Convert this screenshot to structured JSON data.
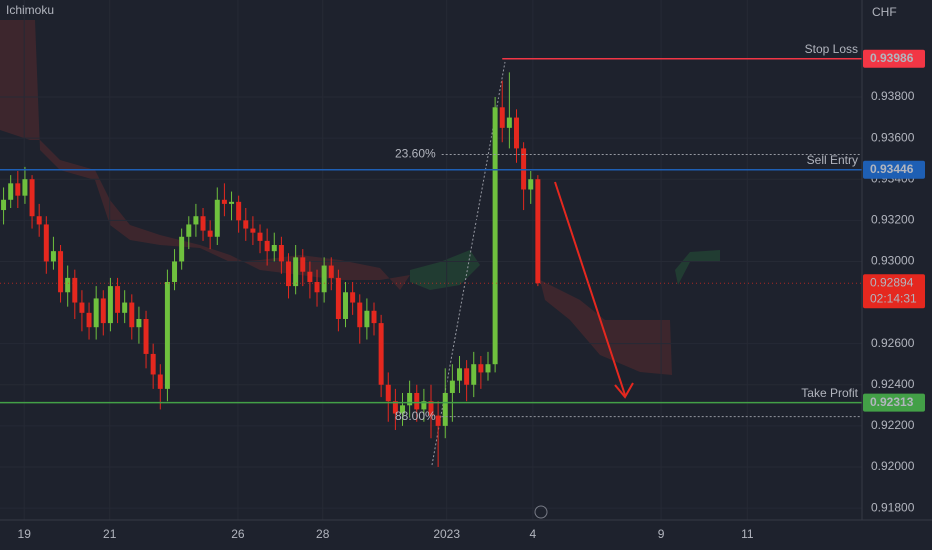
{
  "chart_data": {
    "type": "candlestick",
    "indicator_label": "Ichimoku",
    "currency": "CHF",
    "up_color": "#6fc13e",
    "down_color": "#e5281f",
    "x": [
      0,
      1,
      2,
      3,
      4,
      5,
      6,
      7,
      8,
      9,
      10,
      11,
      12,
      13,
      14,
      15,
      16,
      17,
      18,
      19,
      20,
      21,
      22,
      23,
      24,
      25,
      26,
      27,
      28,
      29,
      30,
      31,
      32,
      33,
      34,
      35,
      36,
      37,
      38,
      39,
      40,
      41,
      42,
      43,
      44,
      45,
      46,
      47,
      48,
      49,
      50,
      51,
      52,
      53,
      54,
      55,
      56,
      57,
      58,
      59,
      60,
      61,
      62,
      63,
      64,
      65,
      66,
      67,
      68,
      69,
      70,
      71,
      72,
      73,
      74,
      75
    ],
    "open": [
      0.9325,
      0.933,
      0.9338,
      0.9332,
      0.934,
      0.9322,
      0.9318,
      0.93,
      0.9305,
      0.9285,
      0.9292,
      0.928,
      0.9275,
      0.9268,
      0.9282,
      0.927,
      0.9288,
      0.9275,
      0.928,
      0.9268,
      0.9272,
      0.9255,
      0.9245,
      0.9238,
      0.929,
      0.93,
      0.9312,
      0.9318,
      0.9322,
      0.9315,
      0.9312,
      0.933,
      0.9328,
      0.9329,
      0.932,
      0.9316,
      0.9314,
      0.931,
      0.9305,
      0.9308,
      0.93,
      0.9288,
      0.9302,
      0.9295,
      0.929,
      0.9285,
      0.9298,
      0.9292,
      0.9272,
      0.9285,
      0.928,
      0.9268,
      0.9276,
      0.927,
      0.924,
      0.9232,
      0.9226,
      0.923,
      0.9236,
      0.9228,
      0.9232,
      0.9225,
      0.922,
      0.9236,
      0.9242,
      0.9248,
      0.924,
      0.925,
      0.9246,
      0.925,
      0.9375,
      0.9365,
      0.937,
      0.9355,
      0.9335,
      0.934
    ],
    "high": [
      0.9336,
      0.9342,
      0.9344,
      0.9346,
      0.9342,
      0.9328,
      0.9322,
      0.9312,
      0.9308,
      0.9298,
      0.9296,
      0.9286,
      0.928,
      0.9288,
      0.9286,
      0.9292,
      0.9292,
      0.9286,
      0.9284,
      0.9278,
      0.9276,
      0.926,
      0.925,
      0.9296,
      0.9306,
      0.9316,
      0.9322,
      0.9328,
      0.9326,
      0.932,
      0.9336,
      0.9338,
      0.9334,
      0.9332,
      0.9326,
      0.9322,
      0.9318,
      0.9316,
      0.9314,
      0.9312,
      0.9304,
      0.9308,
      0.9306,
      0.93,
      0.9296,
      0.9302,
      0.9302,
      0.9296,
      0.929,
      0.929,
      0.9284,
      0.9282,
      0.928,
      0.9274,
      0.9246,
      0.9238,
      0.9236,
      0.9242,
      0.924,
      0.9238,
      0.924,
      0.9232,
      0.9248,
      0.925,
      0.9254,
      0.9252,
      0.9256,
      0.9254,
      0.9256,
      0.938,
      0.9388,
      0.9392,
      0.9374,
      0.9358,
      0.9344,
      0.9342
    ],
    "low": [
      0.9318,
      0.9326,
      0.9326,
      0.9328,
      0.9316,
      0.9312,
      0.9294,
      0.9296,
      0.928,
      0.9278,
      0.9272,
      0.9266,
      0.9262,
      0.9262,
      0.9264,
      0.9266,
      0.927,
      0.927,
      0.9262,
      0.926,
      0.9248,
      0.9238,
      0.9228,
      0.9232,
      0.9286,
      0.9296,
      0.9306,
      0.9312,
      0.931,
      0.9306,
      0.9308,
      0.9322,
      0.932,
      0.9314,
      0.931,
      0.9308,
      0.9304,
      0.9298,
      0.93,
      0.9294,
      0.9282,
      0.9284,
      0.9288,
      0.9282,
      0.9278,
      0.928,
      0.9286,
      0.9266,
      0.9268,
      0.9274,
      0.926,
      0.9262,
      0.9264,
      0.9234,
      0.9222,
      0.9218,
      0.922,
      0.9224,
      0.9222,
      0.9222,
      0.9214,
      0.92,
      0.9214,
      0.9222,
      0.9236,
      0.9232,
      0.9234,
      0.9238,
      0.9242,
      0.9246,
      0.9358,
      0.9355,
      0.9348,
      0.9325,
      0.9328,
      0.9288
    ],
    "close": [
      0.933,
      0.9338,
      0.9332,
      0.934,
      0.9322,
      0.9318,
      0.93,
      0.9305,
      0.9285,
      0.9292,
      0.928,
      0.9275,
      0.9268,
      0.9282,
      0.927,
      0.9288,
      0.9275,
      0.928,
      0.9268,
      0.9272,
      0.9255,
      0.9245,
      0.9238,
      0.929,
      0.93,
      0.9312,
      0.9318,
      0.9322,
      0.9315,
      0.9312,
      0.933,
      0.9328,
      0.9329,
      0.932,
      0.9316,
      0.9314,
      0.931,
      0.9305,
      0.9308,
      0.93,
      0.9288,
      0.9302,
      0.9295,
      0.929,
      0.9285,
      0.9298,
      0.9292,
      0.9272,
      0.9285,
      0.928,
      0.9268,
      0.9276,
      0.927,
      0.924,
      0.9232,
      0.9226,
      0.923,
      0.9236,
      0.9228,
      0.9232,
      0.9225,
      0.922,
      0.9236,
      0.9242,
      0.9248,
      0.924,
      0.925,
      0.9246,
      0.925,
      0.9375,
      0.9365,
      0.937,
      0.9355,
      0.9335,
      0.934,
      0.92894
    ],
    "xlim": [
      -0.5,
      120.5
    ],
    "xticks": [
      {
        "value": 2.9,
        "label": "19"
      },
      {
        "value": 14.9,
        "label": "21"
      },
      {
        "value": 32.9,
        "label": "26"
      },
      {
        "value": 44.8,
        "label": "28"
      },
      {
        "value": 62.2,
        "label": "2023"
      },
      {
        "value": 74.3,
        "label": "4"
      },
      {
        "value": 92.3,
        "label": "9"
      },
      {
        "value": 104.4,
        "label": "11"
      }
    ],
    "ylim": [
      0.91742,
      0.94272
    ],
    "yticks": [
      {
        "value": 0.938,
        "label": "0.93800"
      },
      {
        "value": 0.936,
        "label": "0.93600"
      },
      {
        "value": 0.934,
        "label": "0.93400"
      },
      {
        "value": 0.932,
        "label": "0.93200"
      },
      {
        "value": 0.93,
        "label": "0.93000"
      },
      {
        "value": 0.926,
        "label": "0.92600"
      },
      {
        "value": 0.924,
        "label": "0.92400"
      },
      {
        "value": 0.922,
        "label": "0.92200"
      },
      {
        "value": 0.92,
        "label": "0.92000"
      },
      {
        "value": 0.918,
        "label": "0.91800"
      }
    ],
    "levels": [
      {
        "name": "Stop Loss",
        "value": 0.93986,
        "color": "#f23645",
        "from_x": 70
      },
      {
        "name": "Sell Entry",
        "value": 0.93446,
        "color": "#1e5fb4",
        "from_x": -0.5
      },
      {
        "name": "Take Profit",
        "value": 0.92313,
        "color": "#43a047",
        "from_x": -0.5
      }
    ],
    "fib_levels": [
      {
        "label": "23.60%",
        "value": 0.9352,
        "from_x": 61.5
      },
      {
        "label": "88.00%",
        "value": 0.92245,
        "from_x": 61.5
      }
    ],
    "last_price": 0.92894,
    "countdown": "02:14:31"
  }
}
